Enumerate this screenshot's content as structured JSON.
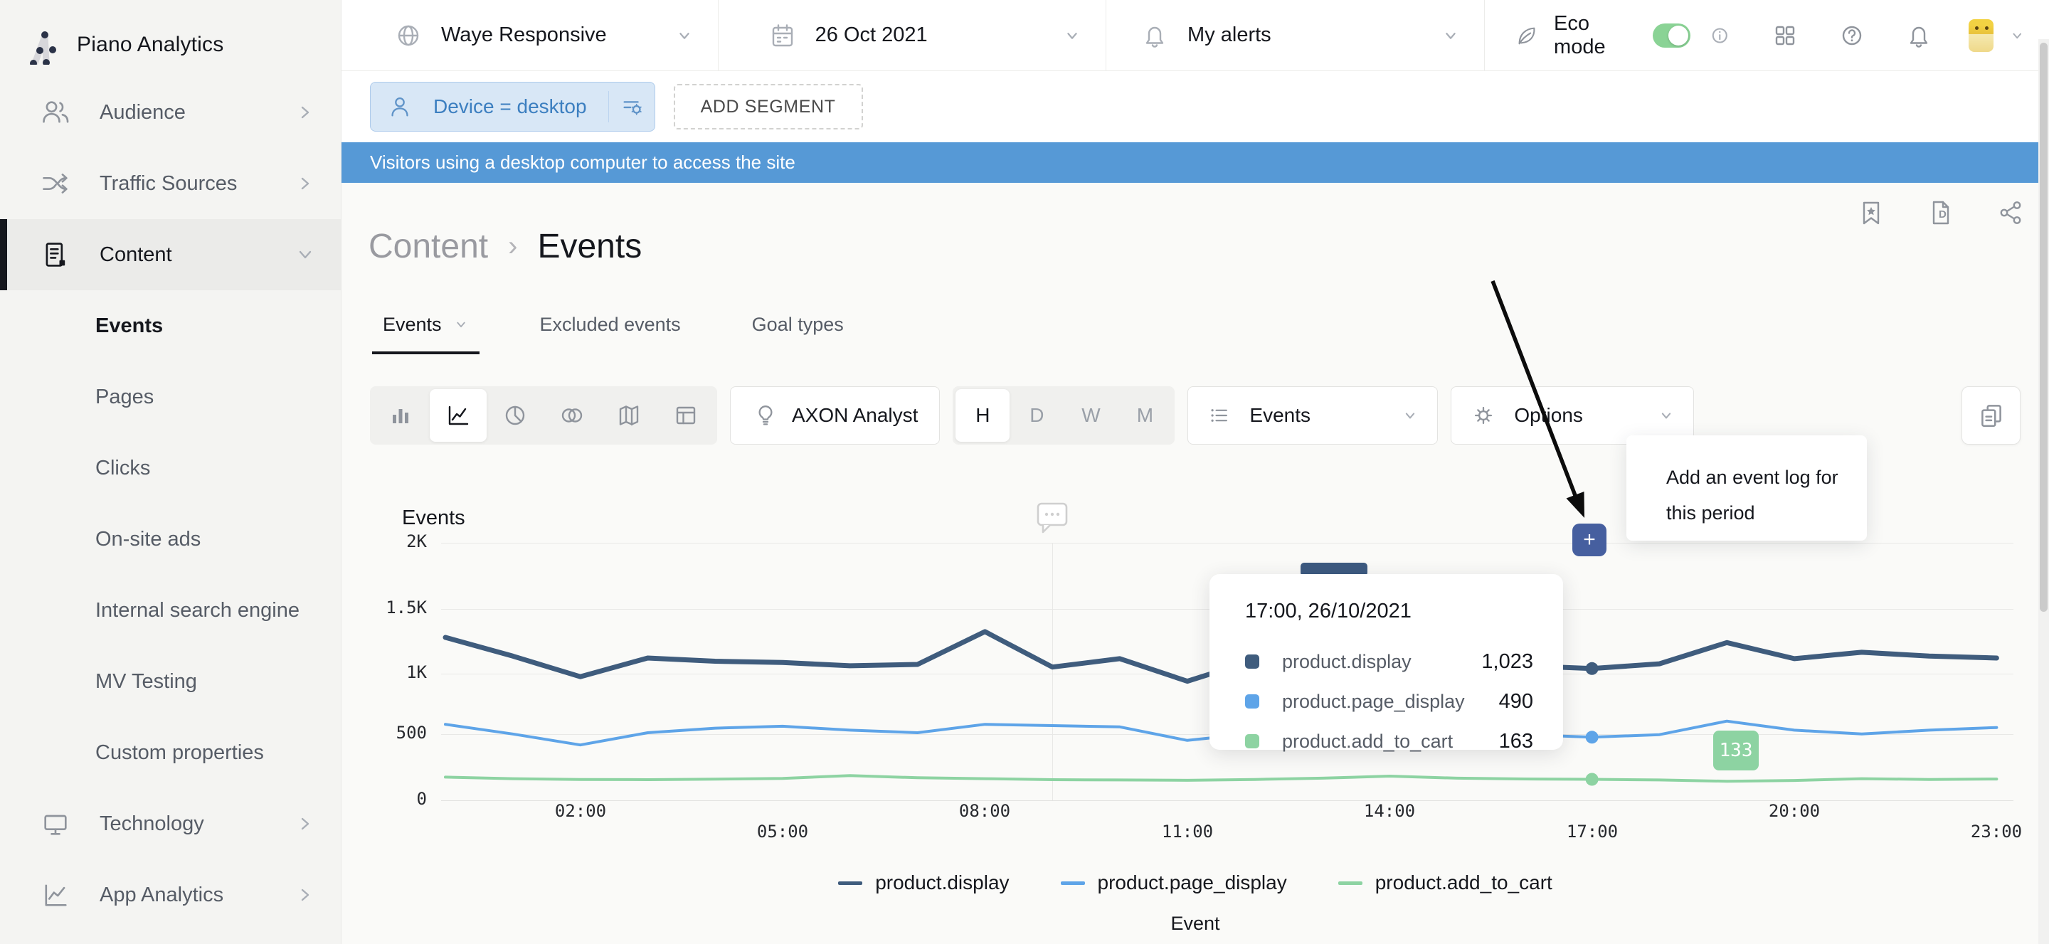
{
  "app": {
    "brand": "Piano Analytics"
  },
  "topbar": {
    "site": "Waye Responsive",
    "date": "26 Oct 2021",
    "alerts": "My alerts",
    "eco_label": "Eco mode",
    "eco_on": true
  },
  "segment": {
    "chip": "Device = desktop",
    "add": "ADD SEGMENT",
    "banner": "Visitors using a desktop computer to access the site"
  },
  "sidebar": {
    "items": [
      {
        "label": "Audience"
      },
      {
        "label": "Traffic Sources"
      },
      {
        "label": "Content"
      },
      {
        "label": "Events"
      },
      {
        "label": "Pages"
      },
      {
        "label": "Clicks"
      },
      {
        "label": "On-site ads"
      },
      {
        "label": "Internal search engine"
      },
      {
        "label": "MV Testing"
      },
      {
        "label": "Custom properties"
      },
      {
        "label": "Technology"
      },
      {
        "label": "App Analytics"
      }
    ]
  },
  "header": {
    "breadcrumb_parent": "Content",
    "breadcrumb_sep": "›",
    "title": "Events"
  },
  "tabs": [
    {
      "label": "Events"
    },
    {
      "label": "Excluded events"
    },
    {
      "label": "Goal types"
    }
  ],
  "toolbar": {
    "axon": "AXON Analyst",
    "granularity": [
      "H",
      "D",
      "W",
      "M"
    ],
    "granularity_selected": "H",
    "metric": "Events",
    "options": "Options"
  },
  "annotation": {
    "line1": "Add an event log for",
    "line2": "this period",
    "plus": "+",
    "badge": "133"
  },
  "tooltip": {
    "title": "17:00, 26/10/2021",
    "rows": [
      {
        "label": "product.display",
        "value": "1,023"
      },
      {
        "label": "product.page_display",
        "value": "490"
      },
      {
        "label": "product.add_to_cart",
        "value": "163"
      }
    ]
  },
  "chart_data": {
    "type": "line",
    "title": "Events",
    "xlabel": "Event",
    "x": [
      "00:00",
      "01:00",
      "02:00",
      "03:00",
      "04:00",
      "05:00",
      "06:00",
      "07:00",
      "08:00",
      "09:00",
      "10:00",
      "11:00",
      "12:00",
      "13:00",
      "14:00",
      "15:00",
      "16:00",
      "17:00",
      "18:00",
      "19:00",
      "20:00",
      "21:00",
      "22:00",
      "23:00"
    ],
    "ylim": [
      0,
      2000
    ],
    "yticks": [
      {
        "label": "0",
        "value": 0
      },
      {
        "label": "500",
        "value": 500
      },
      {
        "label": "1K",
        "value": 1000
      },
      {
        "label": "1.5K",
        "value": 1500
      },
      {
        "label": "2K",
        "value": 2000
      }
    ],
    "xticks_row1": [
      "02:00",
      "08:00",
      "14:00",
      "20:00"
    ],
    "xticks_row2": [
      "05:00",
      "11:00",
      "17:00",
      "23:00"
    ],
    "grid": true,
    "legend_position": "bottom",
    "series": [
      {
        "name": "product.display",
        "color": "#3f5c7d",
        "values": [
          1265,
          1120,
          960,
          1105,
          1080,
          1070,
          1045,
          1055,
          1310,
          1035,
          1100,
          925,
          1090,
          1130,
          1080,
          1070,
          1045,
          1023,
          1060,
          1225,
          1100,
          1150,
          1120,
          1105
        ]
      },
      {
        "name": "product.page_display",
        "color": "#5ea4e8",
        "values": [
          590,
          515,
          430,
          525,
          560,
          575,
          545,
          525,
          590,
          580,
          570,
          465,
          520,
          545,
          530,
          525,
          510,
          490,
          510,
          615,
          545,
          515,
          545,
          565
        ]
      },
      {
        "name": "product.add_to_cart",
        "color": "#8dd3a2",
        "values": [
          180,
          168,
          162,
          160,
          164,
          170,
          192,
          175,
          168,
          160,
          158,
          155,
          162,
          172,
          188,
          172,
          166,
          163,
          158,
          148,
          154,
          168,
          162,
          165
        ]
      }
    ],
    "hover": {
      "x": "17:00",
      "x_index": 17,
      "values": [
        1023,
        490,
        163
      ]
    },
    "annotation_gridline_x": "09:00"
  }
}
